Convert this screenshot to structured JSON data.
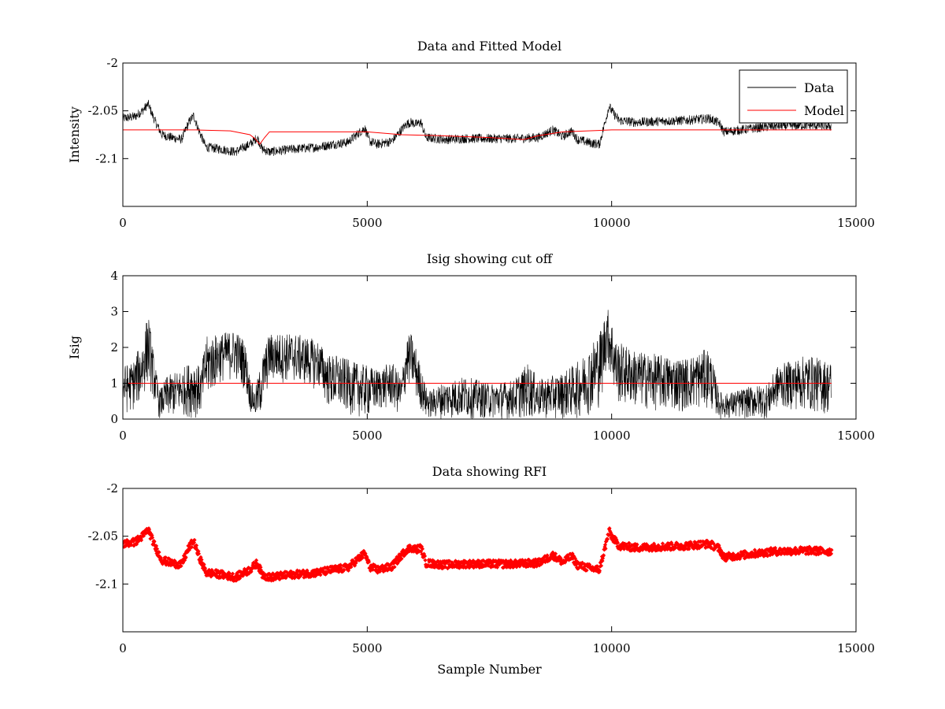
{
  "chart_data": [
    {
      "type": "line",
      "title": "Data and Fitted Model",
      "xlabel": "",
      "ylabel": "Intensity",
      "xlim": [
        0,
        15000
      ],
      "ylim": [
        -2.15,
        -2.0
      ],
      "xticks": [
        0,
        5000,
        10000,
        15000
      ],
      "xticklabels": [
        "0",
        "5000",
        "10000",
        "15000"
      ],
      "yticks": [
        -2.0,
        -2.05,
        -2.1
      ],
      "yticklabels": [
        "-2",
        "-2.05",
        "-2.1"
      ],
      "grid": false,
      "legend": {
        "position": "top-right",
        "entries": [
          "Data",
          "Model"
        ]
      },
      "series": [
        {
          "name": "Data",
          "color": "#000000",
          "style": "line",
          "noise": 0.005,
          "x": [
            0,
            250,
            400,
            520,
            650,
            800,
            1000,
            1200,
            1350,
            1450,
            1550,
            1700,
            2000,
            2300,
            2600,
            2750,
            2850,
            3000,
            3500,
            4000,
            4300,
            4600,
            4950,
            5050,
            5200,
            5500,
            5800,
            5900,
            6000,
            6100,
            6200,
            6600,
            7000,
            7500,
            8000,
            8500,
            8800,
            9000,
            9150,
            9200,
            9300,
            9600,
            9750,
            9850,
            9950,
            10000,
            10150,
            10500,
            11000,
            11500,
            12000,
            12200,
            12300,
            12800,
            13300,
            14000,
            14500
          ],
          "y": [
            -2.058,
            -2.056,
            -2.05,
            -2.043,
            -2.06,
            -2.075,
            -2.078,
            -2.08,
            -2.062,
            -2.055,
            -2.07,
            -2.088,
            -2.09,
            -2.093,
            -2.085,
            -2.078,
            -2.09,
            -2.093,
            -2.09,
            -2.088,
            -2.085,
            -2.083,
            -2.068,
            -2.082,
            -2.085,
            -2.082,
            -2.064,
            -2.062,
            -2.064,
            -2.062,
            -2.078,
            -2.08,
            -2.079,
            -2.079,
            -2.079,
            -2.078,
            -2.07,
            -2.077,
            -2.072,
            -2.072,
            -2.08,
            -2.084,
            -2.085,
            -2.065,
            -2.045,
            -2.05,
            -2.06,
            -2.062,
            -2.061,
            -2.06,
            -2.058,
            -2.063,
            -2.072,
            -2.069,
            -2.066,
            -2.065,
            -2.066
          ]
        },
        {
          "name": "Model",
          "color": "#ff0000",
          "style": "line",
          "noise": 0,
          "x": [
            0,
            1500,
            2200,
            2600,
            2700,
            2800,
            2900,
            3000,
            4000,
            5000,
            5700,
            6500,
            7500,
            8200,
            8500,
            9000,
            10000,
            12000,
            14500
          ],
          "y": [
            -2.07,
            -2.07,
            -2.071,
            -2.075,
            -2.079,
            -2.085,
            -2.078,
            -2.072,
            -2.072,
            -2.072,
            -2.075,
            -2.076,
            -2.078,
            -2.08,
            -2.076,
            -2.072,
            -2.07,
            -2.07,
            -2.07
          ]
        }
      ]
    },
    {
      "type": "line",
      "title": "Isig showing cut off",
      "xlabel": "",
      "ylabel": "Isig",
      "xlim": [
        0,
        15000
      ],
      "ylim": [
        0,
        4
      ],
      "xticks": [
        0,
        5000,
        10000,
        15000
      ],
      "xticklabels": [
        "0",
        "5000",
        "10000",
        "15000"
      ],
      "yticks": [
        0,
        1,
        2,
        3,
        4
      ],
      "yticklabels": [
        "0",
        "1",
        "2",
        "3",
        "4"
      ],
      "grid": false,
      "series": [
        {
          "name": "",
          "color": "#000000",
          "style": "band",
          "x": [
            0,
            200,
            400,
            520,
            650,
            750,
            900,
            1200,
            1450,
            1600,
            1700,
            2000,
            2300,
            2500,
            2600,
            2700,
            2800,
            2900,
            3000,
            3500,
            4000,
            4200,
            4400,
            4700,
            5000,
            5200,
            5500,
            5700,
            5800,
            5900,
            6000,
            6200,
            6300,
            6500,
            7000,
            7500,
            8000,
            8300,
            8500,
            9000,
            9300,
            9500,
            9700,
            9800,
            9900,
            10000,
            10100,
            10500,
            11000,
            11500,
            12000,
            12200,
            12300,
            12800,
            13200,
            13400,
            14000,
            14500
          ],
          "lo": [
            0.1,
            0.2,
            0.5,
            1.0,
            0.4,
            0.0,
            0.0,
            0.1,
            0.0,
            0.1,
            0.5,
            1.0,
            1.1,
            0.8,
            0.2,
            0.0,
            0.0,
            0.5,
            1.0,
            1.0,
            0.8,
            0.3,
            0.2,
            0.1,
            0.0,
            0.2,
            0.3,
            0.0,
            0.8,
            0.9,
            0.5,
            0.0,
            0.0,
            0.0,
            0.0,
            0.0,
            0.0,
            0.0,
            0.0,
            0.0,
            0.0,
            0.1,
            0.2,
            0.5,
            1.5,
            1.0,
            0.4,
            0.3,
            0.2,
            0.2,
            0.3,
            0.0,
            0.0,
            0.0,
            0.0,
            0.3,
            0.2,
            0.1
          ],
          "hi": [
            1.5,
            1.6,
            2.2,
            3.0,
            1.6,
            0.8,
            1.2,
            1.4,
            1.7,
            1.4,
            2.3,
            2.4,
            2.5,
            2.2,
            1.2,
            0.8,
            1.4,
            2.0,
            2.4,
            2.4,
            2.2,
            1.8,
            1.8,
            1.6,
            1.5,
            1.4,
            1.6,
            1.2,
            2.3,
            2.4,
            2.0,
            0.9,
            0.8,
            1.0,
            1.2,
            1.0,
            1.1,
            1.6,
            1.1,
            1.3,
            1.6,
            1.9,
            2.4,
            2.6,
            3.2,
            2.8,
            2.2,
            1.9,
            1.8,
            1.7,
            2.0,
            0.8,
            0.7,
            0.9,
            1.0,
            1.5,
            1.8,
            1.6
          ]
        },
        {
          "name": "",
          "color": "#ff0000",
          "style": "line",
          "x": [
            0,
            14500
          ],
          "y": [
            1,
            1
          ]
        }
      ]
    },
    {
      "type": "scatter",
      "title": "Data showing RFI",
      "xlabel": "Sample Number",
      "ylabel": "",
      "xlim": [
        0,
        15000
      ],
      "ylim": [
        -2.15,
        -2.0
      ],
      "xticks": [
        0,
        5000,
        10000,
        15000
      ],
      "xticklabels": [
        "0",
        "5000",
        "10000",
        "15000"
      ],
      "yticks": [
        -2.0,
        -2.05,
        -2.1
      ],
      "yticklabels": [
        "-2",
        "-2.05",
        "-2.1"
      ],
      "grid": false,
      "series": [
        {
          "name": "",
          "color": "#ff0000",
          "style": "markers",
          "noise": 0.004,
          "x": [
            0,
            250,
            400,
            520,
            650,
            800,
            1000,
            1200,
            1350,
            1450,
            1550,
            1700,
            2000,
            2300,
            2600,
            2750,
            2850,
            3000,
            3500,
            4000,
            4300,
            4600,
            4950,
            5050,
            5200,
            5500,
            5800,
            5900,
            6000,
            6100,
            6200,
            6600,
            7000,
            7500,
            8000,
            8500,
            8800,
            9000,
            9150,
            9200,
            9300,
            9600,
            9750,
            9850,
            9950,
            10000,
            10150,
            10500,
            11000,
            11500,
            12000,
            12200,
            12300,
            12800,
            13300,
            14000,
            14500
          ],
          "y": [
            -2.058,
            -2.056,
            -2.05,
            -2.043,
            -2.06,
            -2.075,
            -2.078,
            -2.08,
            -2.062,
            -2.055,
            -2.07,
            -2.088,
            -2.09,
            -2.093,
            -2.085,
            -2.078,
            -2.09,
            -2.093,
            -2.09,
            -2.088,
            -2.085,
            -2.083,
            -2.068,
            -2.082,
            -2.085,
            -2.082,
            -2.064,
            -2.062,
            -2.064,
            -2.062,
            -2.078,
            -2.08,
            -2.079,
            -2.079,
            -2.079,
            -2.078,
            -2.07,
            -2.077,
            -2.072,
            -2.072,
            -2.08,
            -2.084,
            -2.085,
            -2.065,
            -2.045,
            -2.05,
            -2.06,
            -2.062,
            -2.061,
            -2.06,
            -2.058,
            -2.063,
            -2.072,
            -2.069,
            -2.066,
            -2.065,
            -2.066
          ]
        }
      ]
    }
  ]
}
